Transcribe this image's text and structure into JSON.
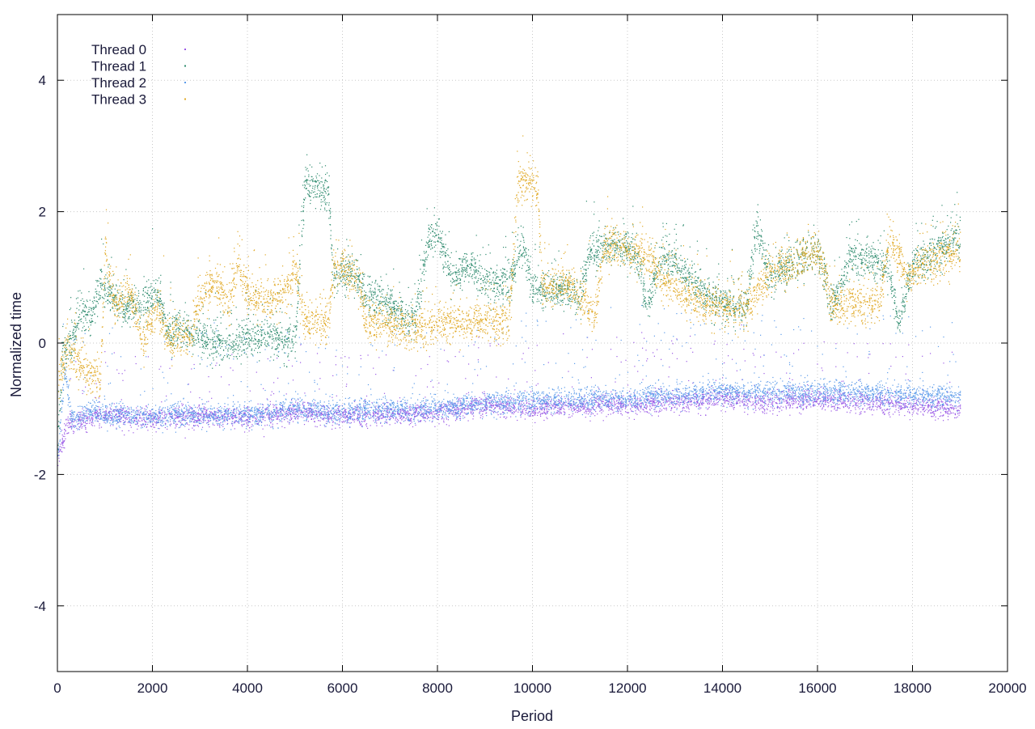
{
  "chart_data": {
    "type": "scatter",
    "title": "",
    "xlabel": "Period",
    "ylabel": "Normalized time",
    "xlim": [
      0,
      20000
    ],
    "ylim": [
      -5,
      5
    ],
    "x_ticks": [
      0,
      2000,
      4000,
      6000,
      8000,
      10000,
      12000,
      14000,
      16000,
      18000,
      20000
    ],
    "y_ticks": [
      -4,
      -2,
      0,
      2,
      4
    ],
    "x_tick_labels": [
      "0",
      "2000",
      "4000",
      "6000",
      "8000",
      "10000",
      "12000",
      "14000",
      "16000",
      "18000",
      "20000"
    ],
    "y_tick_labels": [
      "-4",
      "-2",
      "0",
      "2",
      "4"
    ],
    "grid": true,
    "legend_position": "top-left",
    "x_range_of_data": [
      0,
      19000
    ],
    "series": [
      {
        "name": "Thread 0",
        "color": "#9b59e6",
        "points_per_segment": 120,
        "trend": [
          [
            0,
            -1.8
          ],
          [
            200,
            -1.2
          ],
          [
            1000,
            -1.1
          ],
          [
            2000,
            -1.15
          ],
          [
            3000,
            -1.1
          ],
          [
            4000,
            -1.15
          ],
          [
            5000,
            -1.05
          ],
          [
            6000,
            -1.1
          ],
          [
            7000,
            -1.1
          ],
          [
            8000,
            -1.05
          ],
          [
            9000,
            -0.95
          ],
          [
            10000,
            -1.0
          ],
          [
            11000,
            -0.95
          ],
          [
            12000,
            -0.95
          ],
          [
            13000,
            -0.9
          ],
          [
            14000,
            -0.85
          ],
          [
            15000,
            -0.9
          ],
          [
            16000,
            -0.85
          ],
          [
            17000,
            -0.9
          ],
          [
            18000,
            -0.95
          ],
          [
            19000,
            -1.0
          ]
        ],
        "spread": 0.08,
        "scatter_above": 1.0
      },
      {
        "name": "Thread 1",
        "color": "#2e8b6e",
        "points_per_segment": 140,
        "trend": [
          [
            0,
            -1.5
          ],
          [
            100,
            -0.2
          ],
          [
            300,
            0.0
          ],
          [
            500,
            0.5
          ],
          [
            700,
            0.4
          ],
          [
            900,
            0.9
          ],
          [
            1100,
            0.7
          ],
          [
            1400,
            0.5
          ],
          [
            1800,
            0.6
          ],
          [
            2100,
            0.8
          ],
          [
            2300,
            0.2
          ],
          [
            2800,
            0.15
          ],
          [
            3200,
            0.0
          ],
          [
            3600,
            -0.05
          ],
          [
            4000,
            0.05
          ],
          [
            4500,
            0.1
          ],
          [
            5000,
            0.0
          ],
          [
            5200,
            2.4
          ],
          [
            5700,
            2.3
          ],
          [
            5800,
            1.0
          ],
          [
            6200,
            1.1
          ],
          [
            6500,
            0.7
          ],
          [
            7000,
            0.6
          ],
          [
            7500,
            0.3
          ],
          [
            7800,
            1.6
          ],
          [
            8000,
            1.6
          ],
          [
            8300,
            1.0
          ],
          [
            8700,
            1.2
          ],
          [
            9000,
            0.9
          ],
          [
            9500,
            0.9
          ],
          [
            9800,
            1.5
          ],
          [
            10000,
            0.8
          ],
          [
            10500,
            0.8
          ],
          [
            11000,
            0.7
          ],
          [
            11200,
            1.4
          ],
          [
            11800,
            1.5
          ],
          [
            12200,
            1.3
          ],
          [
            12400,
            0.5
          ],
          [
            12700,
            1.3
          ],
          [
            13000,
            1.2
          ],
          [
            13500,
            0.8
          ],
          [
            14000,
            0.6
          ],
          [
            14500,
            0.5
          ],
          [
            14700,
            1.8
          ],
          [
            15000,
            1.0
          ],
          [
            15500,
            1.2
          ],
          [
            16000,
            1.4
          ],
          [
            16300,
            0.6
          ],
          [
            16700,
            1.3
          ],
          [
            17000,
            1.3
          ],
          [
            17500,
            1.1
          ],
          [
            17700,
            0.3
          ],
          [
            18000,
            1.2
          ],
          [
            18500,
            1.4
          ],
          [
            19000,
            1.6
          ]
        ],
        "spread": 0.14,
        "scatter_above": 0.6
      },
      {
        "name": "Thread 2",
        "color": "#5b9bea",
        "points_per_segment": 130,
        "trend": [
          [
            0,
            -1.7
          ],
          [
            150,
            -0.4
          ],
          [
            300,
            -1.2
          ],
          [
            600,
            -1.05
          ],
          [
            1000,
            -1.1
          ],
          [
            2000,
            -1.1
          ],
          [
            3000,
            -1.1
          ],
          [
            4000,
            -1.1
          ],
          [
            5000,
            -1.0
          ],
          [
            6000,
            -1.05
          ],
          [
            7000,
            -1.0
          ],
          [
            8000,
            -1.0
          ],
          [
            9000,
            -0.9
          ],
          [
            10000,
            -0.9
          ],
          [
            11000,
            -0.85
          ],
          [
            12000,
            -0.85
          ],
          [
            13000,
            -0.8
          ],
          [
            14000,
            -0.75
          ],
          [
            15000,
            -0.75
          ],
          [
            16000,
            -0.75
          ],
          [
            17000,
            -0.75
          ],
          [
            18000,
            -0.8
          ],
          [
            19000,
            -0.8
          ]
        ],
        "spread": 0.09,
        "scatter_above": 1.3
      },
      {
        "name": "Thread 3",
        "color": "#e0a823",
        "points_per_segment": 140,
        "trend": [
          [
            0,
            -0.6
          ],
          [
            200,
            -0.1
          ],
          [
            400,
            -0.3
          ],
          [
            600,
            -0.45
          ],
          [
            900,
            -0.5
          ],
          [
            1000,
            1.4
          ],
          [
            1200,
            0.5
          ],
          [
            1500,
            0.8
          ],
          [
            1800,
            0.0
          ],
          [
            2100,
            0.6
          ],
          [
            2300,
            0.1
          ],
          [
            2800,
            0.05
          ],
          [
            3000,
            0.7
          ],
          [
            3300,
            0.9
          ],
          [
            3600,
            0.6
          ],
          [
            3800,
            1.2
          ],
          [
            4000,
            0.7
          ],
          [
            4400,
            0.6
          ],
          [
            4800,
            0.8
          ],
          [
            5000,
            1.1
          ],
          [
            5200,
            0.3
          ],
          [
            5700,
            0.3
          ],
          [
            5800,
            1.2
          ],
          [
            6300,
            1.0
          ],
          [
            6500,
            0.3
          ],
          [
            7000,
            0.3
          ],
          [
            7500,
            0.2
          ],
          [
            8000,
            0.3
          ],
          [
            8500,
            0.3
          ],
          [
            9000,
            0.35
          ],
          [
            9500,
            0.3
          ],
          [
            9700,
            2.5
          ],
          [
            10100,
            2.4
          ],
          [
            10200,
            0.8
          ],
          [
            10700,
            0.9
          ],
          [
            11000,
            0.7
          ],
          [
            11300,
            0.4
          ],
          [
            11500,
            1.5
          ],
          [
            12000,
            1.4
          ],
          [
            12400,
            1.3
          ],
          [
            12700,
            1.0
          ],
          [
            13000,
            0.8
          ],
          [
            13500,
            0.6
          ],
          [
            14000,
            0.55
          ],
          [
            14500,
            0.5
          ],
          [
            15000,
            1.1
          ],
          [
            15500,
            1.2
          ],
          [
            16000,
            1.4
          ],
          [
            16300,
            0.6
          ],
          [
            16700,
            0.6
          ],
          [
            17300,
            0.6
          ],
          [
            17500,
            1.6
          ],
          [
            17900,
            1.0
          ],
          [
            18200,
            1.2
          ],
          [
            18700,
            1.3
          ],
          [
            19000,
            1.4
          ]
        ],
        "spread": 0.15,
        "scatter_above": 0.6
      }
    ]
  }
}
